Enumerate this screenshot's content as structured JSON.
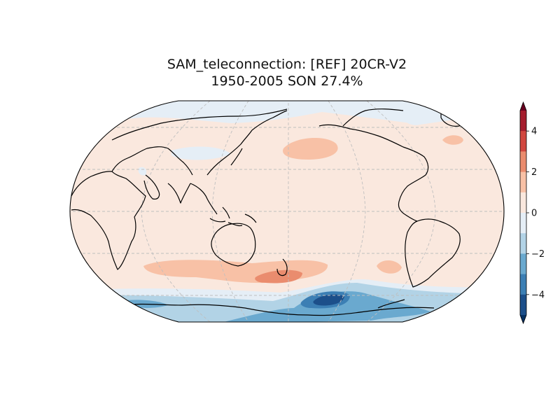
{
  "figure": {
    "title_line1": "SAM_teleconnection: [REF] 20CR-V2",
    "title_line2": "1950-2005 SON 27.4%"
  },
  "colorbar": {
    "ticks": [
      "4",
      "2",
      "0",
      "−2",
      "−4"
    ],
    "levels": [
      {
        "range": "4 to 5",
        "color": "#a51d2d"
      },
      {
        "range": "3 to 4",
        "color": "#d1473f"
      },
      {
        "range": "2 to 3",
        "color": "#ea8c6e"
      },
      {
        "range": "1 to 2",
        "color": "#f8c1a6"
      },
      {
        "range": "0 to 1",
        "color": "#fae8de"
      },
      {
        "range": "-1 to 0",
        "color": "#e5eef6"
      },
      {
        "range": "-2 to -1",
        "color": "#b2d3e6"
      },
      {
        "range": "-3 to -2",
        "color": "#6aa9cf"
      },
      {
        "range": "-4 to -3",
        "color": "#3c7fb4"
      },
      {
        "range": "-5 to -4",
        "color": "#1c4f8a"
      }
    ],
    "extend": "both"
  },
  "map": {
    "projection": "robinson",
    "central_longitude": "180",
    "gridlines": true,
    "coastlines": true,
    "background_color": "#fae8de"
  }
}
